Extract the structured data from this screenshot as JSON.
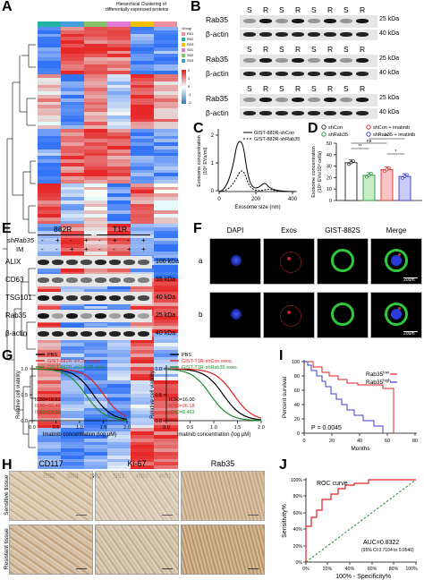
{
  "figure": {
    "panel_letters": [
      "A",
      "B",
      "C",
      "D",
      "E",
      "F",
      "G",
      "H",
      "I",
      "J"
    ],
    "A": {
      "title_line1": "Hierarchical Clustering of",
      "title_line2": "differentially expressed proteins",
      "samples": [
        "R02",
        "S03",
        "S02",
        "S01",
        "R03",
        "R01"
      ],
      "legend_title": "Group",
      "legend_items": [
        "R01",
        "R02",
        "R03",
        "S01",
        "S02",
        "S03"
      ],
      "legend_colors": [
        "#f08fa0",
        "#1fb5a2",
        "#f5c000",
        "#e07bd8",
        "#86c26a",
        "#41a0d9"
      ],
      "scale_ticks": [
        "2",
        "1",
        "0",
        "-1",
        "-2"
      ]
    },
    "B": {
      "lanes": [
        "S",
        "R",
        "S",
        "R",
        "S",
        "R",
        "S",
        "R"
      ],
      "blots": [
        {
          "top_label": "Rab35",
          "bottom_label": "β-actin",
          "top_kda": "25 kDa",
          "bottom_kda": "40 kDa"
        },
        {
          "top_label": "Rab35",
          "bottom_label": "β-actin",
          "top_kda": "25 kDa",
          "bottom_kda": "40 kDa"
        },
        {
          "top_label": "Rab35",
          "bottom_label": "β-actin",
          "top_kda": "25 kDa",
          "bottom_kda": "40 kDa"
        }
      ]
    },
    "C": {
      "legend": [
        "GIST-882R-shCon",
        "GIST-882R-shRab35"
      ],
      "ylabel_line1": "Exosome concentration",
      "ylabel_line2": "(10⁸ EVs/ml)",
      "xlabel": "Exosome size (nm)",
      "yticks": [
        "2",
        "1",
        "0"
      ],
      "xticks": [
        "0",
        "200",
        "400"
      ]
    },
    "D": {
      "legend": [
        "shCon",
        "shCon + imatinib",
        "shRab35",
        "shRab35 + imatinib"
      ],
      "ylabel_line1": "Exosome concentration",
      "ylabel_line2": "(10⁹ EVs/10⁸ cells)",
      "yticks": [
        "50",
        "40",
        "30",
        "20",
        "10",
        "0"
      ],
      "sig": [
        "**",
        "*",
        "ns",
        "**"
      ]
    },
    "E": {
      "cell_lines": [
        "882R",
        "T1R"
      ],
      "row_shRab35": "shRab35",
      "row_IM": "IM",
      "shRab35_signs": [
        "-",
        "+",
        "-",
        "+",
        "-",
        "+",
        "-",
        "+"
      ],
      "IM_signs": [
        "-",
        "-",
        "+",
        "+",
        "-",
        "-",
        "+",
        "+"
      ],
      "proteins": [
        "ALIX",
        "CD63",
        "TSG101",
        "Rab35",
        "β-actin"
      ],
      "kda": [
        "100 kDa",
        "55 kDa",
        "40 kDa",
        "25 kDa",
        "40 kDa"
      ]
    },
    "F": {
      "columns": [
        "DAPI",
        "Exos",
        "GIST-882S",
        "Merge"
      ],
      "rows": [
        "a",
        "b"
      ],
      "scale": "20um"
    },
    "G": {
      "left": {
        "legend": [
          "PBS",
          "GIST-882R-shCon exos",
          "GIST-882R-shRab35 exos"
        ],
        "ic50": [
          "IC50=19.61",
          "IC50=32.46",
          "IC50=13.35"
        ]
      },
      "right": {
        "legend": [
          "PBS",
          "GIST-T1R-shCon exos",
          "GIST-T1R-shRab35 exos"
        ],
        "ic50": [
          "IC50=16.00",
          "IC50=26.18",
          "IC50=8.463"
        ]
      },
      "ylabel": "Relative cell viability",
      "xlabel": "Imatinib concentration (log μM)",
      "yticks": [
        "1.0",
        "0.5",
        "0.0"
      ],
      "xticks": [
        "0.0",
        "0.5",
        "1.0",
        "1.5",
        "2.0"
      ],
      "colors": [
        "#000000",
        "#e02020",
        "#1c8c2c"
      ]
    },
    "H": {
      "columns": [
        "CD117",
        "Ki-67",
        "Rab35"
      ],
      "rows": [
        "Sensitive tissue",
        "Resistant tissue"
      ]
    },
    "I": {
      "legend_low": "Rab35",
      "legend_low_sup": "low",
      "legend_high": "Rab35",
      "legend_high_sup": "high",
      "pvalue": "P = 0.0045",
      "ylabel": "Percent survival",
      "xlabel": "Months",
      "yticks": [
        "100",
        "80",
        "60",
        "40",
        "20",
        "0"
      ],
      "xticks": [
        "0",
        "20",
        "40",
        "60",
        "80"
      ]
    },
    "J": {
      "title": "ROC curve",
      "auc": "AUC=0.8322",
      "ci": "(95% CI:0.7104 to 0.9540)",
      "ylabel": "Sensitivity%",
      "xlabel": "100% - Specificity%",
      "yticks": [
        "100%",
        "80%",
        "60%",
        "40%",
        "20%",
        "0%"
      ],
      "xticks": [
        "0%",
        "20%",
        "40%",
        "60%",
        "80%",
        "100%"
      ]
    }
  }
}
